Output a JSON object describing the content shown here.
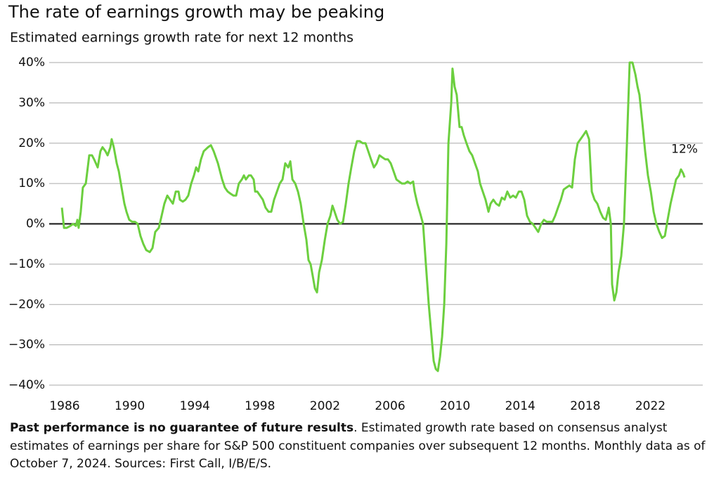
{
  "chart_data": {
    "type": "line",
    "title": "The rate of earnings growth may be peaking",
    "subtitle": "Estimated earnings growth rate for next 12 months",
    "annotation": "12%",
    "note_bold": "Past performance is no guarantee of future results",
    "note": ". Estimated growth rate based on consensus analyst estimates of earnings per share for S&P 500 constituent companies over subsequent 12 months. Monthly data as of October 7, 2024. Sources: First Call, I/B/E/S.",
    "xlim": [
      1985.05,
      2025.22
    ],
    "xticks": [
      1986,
      1990,
      1994,
      1998,
      2002,
      2006,
      2010,
      2014,
      2018,
      2022
    ],
    "ylim": [
      -40,
      40
    ],
    "yticks": [
      {
        "value": 40,
        "label": "40%"
      },
      {
        "value": 30,
        "label": "30%"
      },
      {
        "value": 20,
        "label": "20%"
      },
      {
        "value": 10,
        "label": "10%"
      },
      {
        "value": 0,
        "label": "0%"
      },
      {
        "value": -10,
        "label": "−10%"
      },
      {
        "value": -20,
        "label": "−20%"
      },
      {
        "value": -30,
        "label": "−30%"
      },
      {
        "value": -40,
        "label": "−40%"
      }
    ],
    "grid": true,
    "x": [
      1985.83,
      1985.96,
      1986.13,
      1986.35,
      1986.52,
      1986.69,
      1986.78,
      1986.86,
      1986.99,
      1987.12,
      1987.3,
      1987.51,
      1987.68,
      1987.81,
      1988.03,
      1988.2,
      1988.33,
      1988.51,
      1988.64,
      1988.81,
      1988.89,
      1989.02,
      1989.2,
      1989.33,
      1989.5,
      1989.67,
      1989.8,
      1989.97,
      1990.15,
      1990.32,
      1990.49,
      1990.66,
      1990.84,
      1991.01,
      1991.23,
      1991.4,
      1991.57,
      1991.79,
      1991.96,
      1992.13,
      1992.31,
      1992.48,
      1992.65,
      1992.83,
      1993.0,
      1993.08,
      1993.26,
      1993.43,
      1993.6,
      1993.78,
      1993.95,
      1994.08,
      1994.21,
      1994.38,
      1994.55,
      1994.81,
      1994.99,
      1995.16,
      1995.42,
      1995.68,
      1995.85,
      1996.02,
      1996.19,
      1996.37,
      1996.54,
      1996.71,
      1996.89,
      1997.02,
      1997.14,
      1997.32,
      1997.45,
      1997.62,
      1997.71,
      1997.84,
      1998.01,
      1998.18,
      1998.35,
      1998.53,
      1998.7,
      1998.87,
      1999.05,
      1999.22,
      1999.39,
      1999.56,
      1999.74,
      1999.87,
      2000.0,
      2000.17,
      2000.34,
      2000.51,
      2000.69,
      2000.86,
      2000.99,
      2001.12,
      2001.25,
      2001.38,
      2001.51,
      2001.64,
      2001.81,
      2001.99,
      2002.16,
      2002.33,
      2002.46,
      2002.59,
      2002.76,
      2002.93,
      2003.11,
      2003.28,
      2003.45,
      2003.62,
      2003.8,
      2003.97,
      2004.14,
      2004.32,
      2004.49,
      2004.66,
      2004.83,
      2005.01,
      2005.18,
      2005.35,
      2005.52,
      2005.7,
      2005.87,
      2006.04,
      2006.22,
      2006.39,
      2006.56,
      2006.73,
      2006.91,
      2007.08,
      2007.25,
      2007.42,
      2007.51,
      2007.68,
      2007.86,
      2008.03,
      2008.2,
      2008.38,
      2008.55,
      2008.68,
      2008.81,
      2008.94,
      2009.07,
      2009.2,
      2009.33,
      2009.46,
      2009.59,
      2009.76,
      2009.84,
      2009.97,
      2010.1,
      2010.27,
      2010.4,
      2010.53,
      2010.7,
      2010.88,
      2011.05,
      2011.22,
      2011.4,
      2011.53,
      2011.7,
      2011.87,
      2012.05,
      2012.18,
      2012.35,
      2012.52,
      2012.7,
      2012.87,
      2013.04,
      2013.21,
      2013.39,
      2013.56,
      2013.73,
      2013.91,
      2014.08,
      2014.25,
      2014.42,
      2014.6,
      2014.77,
      2014.94,
      2015.11,
      2015.29,
      2015.46,
      2015.63,
      2015.81,
      2015.98,
      2016.15,
      2016.32,
      2016.5,
      2016.67,
      2016.84,
      2017.02,
      2017.19,
      2017.36,
      2017.53,
      2017.71,
      2017.88,
      2018.05,
      2018.23,
      2018.4,
      2018.57,
      2018.74,
      2018.92,
      2019.09,
      2019.26,
      2019.44,
      2019.57,
      2019.65,
      2019.78,
      2019.91,
      2020.04,
      2020.21,
      2020.38,
      2020.56,
      2020.73,
      2020.9,
      2021.08,
      2021.21,
      2021.33,
      2021.51,
      2021.68,
      2021.85,
      2022.03,
      2022.2,
      2022.37,
      2022.55,
      2022.72,
      2022.89,
      2023.06,
      2023.24,
      2023.41,
      2023.58,
      2023.76,
      2023.88,
      2024.02,
      2024.1
    ],
    "series": [
      {
        "color": "#6ccf3f",
        "values": [
          4,
          -1,
          -1,
          -0.5,
          0,
          -0.5,
          1,
          -1,
          3,
          9,
          10,
          17,
          17,
          16,
          14,
          18,
          19,
          18,
          17,
          19,
          21,
          19,
          15,
          13,
          9,
          5,
          3,
          1,
          0.5,
          0.5,
          0,
          -3,
          -5,
          -6.5,
          -7,
          -6,
          -2,
          -1,
          2,
          5,
          7,
          6,
          5,
          8,
          8,
          6,
          5.5,
          6,
          7,
          10,
          12,
          14,
          13,
          16,
          18,
          19,
          19.5,
          18,
          15,
          11,
          9,
          8,
          7.5,
          7,
          7,
          10,
          11,
          12,
          11,
          12,
          12,
          11,
          8,
          8,
          7,
          6,
          4,
          3,
          3,
          6,
          8,
          10,
          11,
          15,
          14,
          15.5,
          11,
          10,
          8,
          5,
          0,
          -4,
          -9,
          -10,
          -13,
          -16,
          -17,
          -12,
          -9,
          -4,
          0,
          2,
          4.5,
          3,
          1,
          0,
          0.5,
          5,
          10,
          14,
          18,
          20.5,
          20.5,
          20,
          20,
          18,
          16,
          14,
          15,
          17,
          16.5,
          16,
          16,
          15,
          13,
          11,
          10.5,
          10,
          10,
          10.5,
          10,
          10.5,
          8,
          5,
          2.5,
          0,
          -10,
          -20,
          -28,
          -34,
          -36,
          -36.5,
          -33,
          -28,
          -20,
          -5,
          20,
          30,
          38.5,
          34,
          32,
          24,
          24,
          22,
          20,
          18,
          17,
          15,
          13,
          10,
          8,
          6,
          3,
          5,
          6,
          5,
          4.5,
          6.5,
          6,
          8,
          6.5,
          7,
          6.5,
          8,
          8,
          6,
          2,
          0.5,
          0,
          -1,
          -2,
          0,
          1,
          0.5,
          0.5,
          0.5,
          2,
          4,
          6,
          8.5,
          9,
          9.5,
          9,
          16,
          20,
          21,
          22,
          23,
          21,
          8,
          6,
          5,
          3,
          1.5,
          1,
          4,
          0,
          -15,
          -19,
          -17,
          -12,
          -8,
          0,
          20,
          40,
          40,
          37,
          34,
          32,
          25,
          18,
          12,
          8,
          3,
          0,
          -2,
          -3.5,
          -3,
          1,
          5,
          8,
          11,
          12,
          13.5,
          12.5,
          11.5
        ]
      }
    ]
  }
}
